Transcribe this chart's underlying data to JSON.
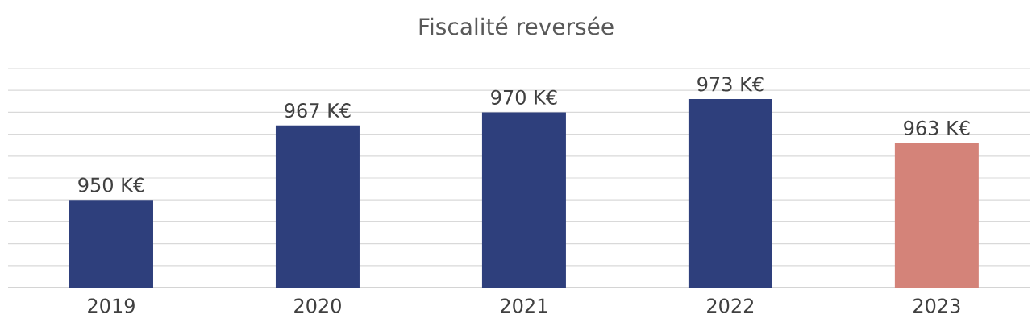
{
  "chart_data": {
    "type": "bar",
    "title": "Fiscalité reversée",
    "categories": [
      "2019",
      "2020",
      "2021",
      "2022",
      "2023"
    ],
    "values": [
      950,
      967,
      970,
      973,
      963
    ],
    "colors": [
      "#2e3f7c",
      "#2e3f7c",
      "#2e3f7c",
      "#2e3f7c",
      "#d48379"
    ],
    "value_labels": [
      "950 K€",
      "967 K€",
      "970 K€",
      "973 K€",
      "963 K€"
    ],
    "ylim": [
      930,
      980
    ],
    "grid": "y",
    "tick_labels": "x"
  }
}
